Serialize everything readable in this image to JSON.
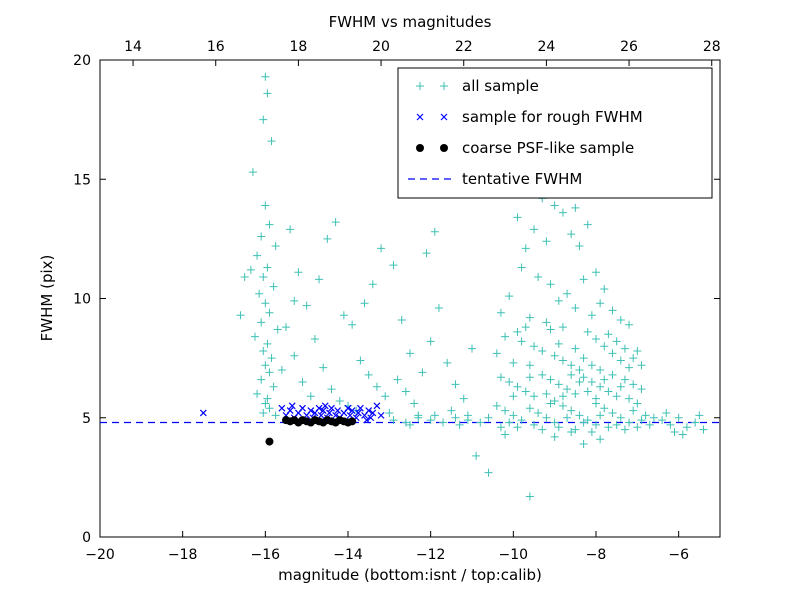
{
  "figure": {
    "title": "FWHM vs magnitudes",
    "xlabel": "magnitude (bottom:isnt / top:calib)",
    "ylabel": "FWHM (pix)"
  },
  "chart_data": {
    "type": "scatter",
    "title": "FWHM vs magnitudes",
    "xlabel": "magnitude (bottom:isnt / top:calib)",
    "ylabel": "FWHM (pix)",
    "grid": false,
    "legend_position": "upper right",
    "x_bottom": {
      "label": "isnt",
      "range": [
        -20,
        -5
      ],
      "ticks": [
        -20,
        -18,
        -16,
        -14,
        -12,
        -10,
        -8,
        -6
      ]
    },
    "x_top": {
      "label": "calib",
      "ticks": [
        14,
        16,
        18,
        20,
        22,
        24,
        26,
        28
      ],
      "offset_from_bottom": 33.2
    },
    "ylim": [
      0,
      20
    ],
    "yticks": [
      0,
      5,
      10,
      15,
      20
    ],
    "tentative_fwhm": 4.8,
    "series": [
      {
        "name": "all sample",
        "marker": "plus",
        "color": "#3fc1b4",
        "points": [
          [
            -16,
            19.3
          ],
          [
            -15.95,
            18.6
          ],
          [
            -16.05,
            17.5
          ],
          [
            -15.85,
            16.6
          ],
          [
            -16.3,
            15.3
          ],
          [
            -16,
            13.9
          ],
          [
            -15.9,
            13.1
          ],
          [
            -16.1,
            12.6
          ],
          [
            -15.75,
            12.2
          ],
          [
            -16.2,
            11.8
          ],
          [
            -15.95,
            11.3
          ],
          [
            -16.05,
            10.9
          ],
          [
            -15.8,
            10.5
          ],
          [
            -16.15,
            10.2
          ],
          [
            -16,
            9.8
          ],
          [
            -15.9,
            9.4
          ],
          [
            -16.1,
            9
          ],
          [
            -15.7,
            8.7
          ],
          [
            -16.25,
            8.4
          ],
          [
            -15.95,
            8.1
          ],
          [
            -16.05,
            7.8
          ],
          [
            -15.85,
            7.5
          ],
          [
            -16,
            7.2
          ],
          [
            -15.9,
            6.9
          ],
          [
            -16.1,
            6.6
          ],
          [
            -15.8,
            6.3
          ],
          [
            -16.2,
            6
          ],
          [
            -15.95,
            5.8
          ],
          [
            -16,
            5.6
          ],
          [
            -15.9,
            5.4
          ],
          [
            -16.05,
            5.2
          ],
          [
            -15.75,
            5.1
          ],
          [
            -16.35,
            11.2
          ],
          [
            -16.5,
            10.9
          ],
          [
            -16.6,
            9.3
          ],
          [
            -15.6,
            7
          ],
          [
            -15.4,
            12.9
          ],
          [
            -15.2,
            11.1
          ],
          [
            -15,
            9.7
          ],
          [
            -14.8,
            8.3
          ],
          [
            -15.3,
            7.6
          ],
          [
            -14.6,
            7.1
          ],
          [
            -15.1,
            6.5
          ],
          [
            -14.4,
            6.2
          ],
          [
            -14.9,
            5.9
          ],
          [
            -14.2,
            5.7
          ],
          [
            -13.9,
            8.9
          ],
          [
            -13.7,
            7.4
          ],
          [
            -13.5,
            6.8
          ],
          [
            -13.3,
            6.3
          ],
          [
            -13.1,
            5.9
          ],
          [
            -13.6,
            9.8
          ],
          [
            -13.4,
            10.6
          ],
          [
            -13.2,
            12.1
          ],
          [
            -12.9,
            11.4
          ],
          [
            -12.7,
            9.1
          ],
          [
            -12.5,
            7.7
          ],
          [
            -12.8,
            6.6
          ],
          [
            -12.6,
            6.1
          ],
          [
            -14,
            5.5
          ],
          [
            -13.8,
            5.3
          ],
          [
            -15.5,
            8.8
          ],
          [
            -15.3,
            9.9
          ],
          [
            -14.7,
            10.8
          ],
          [
            -14.5,
            12.5
          ],
          [
            -14.3,
            13.2
          ],
          [
            -12.4,
            5.6
          ],
          [
            -12.2,
            6.9
          ],
          [
            -12,
            8.2
          ],
          [
            -11.8,
            9.6
          ],
          [
            -11.6,
            7.3
          ],
          [
            -11.4,
            6.4
          ],
          [
            -11.2,
            5.8
          ],
          [
            -11,
            7.9
          ],
          [
            -12.1,
            11.9
          ],
          [
            -11.9,
            12.8
          ],
          [
            -13,
            5.2
          ],
          [
            -12.3,
            5.1
          ],
          [
            -11.5,
            5.3
          ],
          [
            -11.1,
            5.1
          ],
          [
            -14.1,
            9.3
          ],
          [
            -9.3,
            14.2
          ],
          [
            -9,
            13.9
          ],
          [
            -9.9,
            13.4
          ],
          [
            -8.8,
            13.6
          ],
          [
            -9.5,
            12.9
          ],
          [
            -8.6,
            12.7
          ],
          [
            -9.2,
            12.4
          ],
          [
            -8.4,
            12.2
          ],
          [
            -9.7,
            12.1
          ],
          [
            -8.2,
            13.1
          ],
          [
            -8.9,
            14.4
          ],
          [
            -8.5,
            13.8
          ],
          [
            -9.8,
            11.3
          ],
          [
            -9.4,
            10.9
          ],
          [
            -9.1,
            10.6
          ],
          [
            -8.7,
            10.2
          ],
          [
            -8.3,
            10.8
          ],
          [
            -8,
            11.1
          ],
          [
            -7.8,
            10.4
          ],
          [
            -8.9,
            9.9
          ],
          [
            -8.5,
            9.6
          ],
          [
            -8.1,
            9.3
          ],
          [
            -7.9,
            9.8
          ],
          [
            -7.6,
            9.5
          ],
          [
            -9.6,
            9.2
          ],
          [
            -9.2,
            9
          ],
          [
            -8.8,
            8.8
          ],
          [
            -7.4,
            9.1
          ],
          [
            -7.2,
            8.9
          ],
          [
            -10.1,
            10.1
          ],
          [
            -10.3,
            9.4
          ],
          [
            -9.9,
            8.6
          ],
          [
            -10.2,
            8.4
          ],
          [
            -9.8,
            8.2
          ],
          [
            -9.5,
            8
          ],
          [
            -9.3,
            7.8
          ],
          [
            -9,
            7.6
          ],
          [
            -8.8,
            7.4
          ],
          [
            -8.6,
            7.2
          ],
          [
            -8.4,
            7
          ],
          [
            -8.2,
            8.6
          ],
          [
            -8,
            8.3
          ],
          [
            -7.8,
            8
          ],
          [
            -7.6,
            7.7
          ],
          [
            -7.4,
            7.4
          ],
          [
            -7.2,
            7.1
          ],
          [
            -7,
            7.8
          ],
          [
            -9.6,
            7.2
          ],
          [
            -9.1,
            8.7
          ],
          [
            -8.9,
            8.1
          ],
          [
            -8.5,
            7.9
          ],
          [
            -8.3,
            7.5
          ],
          [
            -8.1,
            7.2
          ],
          [
            -7.9,
            7
          ],
          [
            -7.7,
            8.5
          ],
          [
            -7.5,
            8.2
          ],
          [
            -7.3,
            7.9
          ],
          [
            -7.1,
            7.5
          ],
          [
            -6.9,
            7.2
          ],
          [
            -10,
            7.3
          ],
          [
            -10.4,
            7.7
          ],
          [
            -9.7,
            8.8
          ],
          [
            -10.3,
            6.7
          ],
          [
            -10.1,
            6.5
          ],
          [
            -9.9,
            6.3
          ],
          [
            -9.7,
            6.1
          ],
          [
            -9.5,
            5.9
          ],
          [
            -9.3,
            6.8
          ],
          [
            -9.1,
            6.6
          ],
          [
            -8.9,
            6.4
          ],
          [
            -8.7,
            6.2
          ],
          [
            -8.5,
            6
          ],
          [
            -8.3,
            6.7
          ],
          [
            -8.1,
            6.5
          ],
          [
            -7.9,
            6.3
          ],
          [
            -7.7,
            6.1
          ],
          [
            -7.5,
            5.9
          ],
          [
            -7.3,
            6.6
          ],
          [
            -7.1,
            6.4
          ],
          [
            -6.9,
            6.2
          ],
          [
            -8.6,
            6.8
          ],
          [
            -8.2,
            6.1
          ],
          [
            -7.8,
            6.6
          ],
          [
            -7.4,
            6.3
          ],
          [
            -8,
            5.8
          ],
          [
            -8.8,
            5.9
          ],
          [
            -9.2,
            6
          ],
          [
            -9.6,
            6.7
          ],
          [
            -10,
            5.9
          ],
          [
            -8.4,
            6.5
          ],
          [
            -7.6,
            6.8
          ],
          [
            -7.2,
            5.8
          ],
          [
            -10.4,
            5.5
          ],
          [
            -10.2,
            5.3
          ],
          [
            -10,
            5.1
          ],
          [
            -9.8,
            4.9
          ],
          [
            -9.6,
            5.4
          ],
          [
            -9.4,
            5.2
          ],
          [
            -9.2,
            5
          ],
          [
            -9,
            4.8
          ],
          [
            -8.8,
            5.5
          ],
          [
            -8.6,
            5.3
          ],
          [
            -8.4,
            5.1
          ],
          [
            -8.2,
            4.9
          ],
          [
            -8,
            4.7
          ],
          [
            -7.8,
            5.4
          ],
          [
            -7.6,
            5.2
          ],
          [
            -7.4,
            5
          ],
          [
            -7.2,
            4.8
          ],
          [
            -7,
            4.6
          ],
          [
            -6.8,
            5.1
          ],
          [
            -8.9,
            4.6
          ],
          [
            -8.5,
            4.5
          ],
          [
            -8.1,
            4.4
          ],
          [
            -7.7,
            4.6
          ],
          [
            -7.3,
            4.5
          ],
          [
            -8.7,
            5
          ],
          [
            -8.3,
            4.8
          ],
          [
            -7.9,
            5.1
          ],
          [
            -7.5,
            4.7
          ],
          [
            -9.1,
            5.6
          ],
          [
            -9.5,
            4.7
          ],
          [
            -9.9,
            4.6
          ],
          [
            -10.1,
            4.8
          ],
          [
            -9.3,
            4.5
          ],
          [
            -8.6,
            4.4
          ],
          [
            -7.1,
            5.3
          ],
          [
            -6.9,
            4.9
          ],
          [
            -6.7,
            4.7
          ],
          [
            -6.6,
            5
          ],
          [
            -7,
            5.6
          ],
          [
            -8,
            5.6
          ],
          [
            -9,
            5.7
          ],
          [
            -10.3,
            4.6
          ],
          [
            -6.4,
            4.9
          ],
          [
            -6.2,
            4.7
          ],
          [
            -6,
            5
          ],
          [
            -5.8,
            4.6
          ],
          [
            -5.6,
            4.8
          ],
          [
            -5.4,
            4.5
          ],
          [
            -6.3,
            5.2
          ],
          [
            -5.9,
            4.3
          ],
          [
            -5.5,
            5.1
          ],
          [
            -6.1,
            4.4
          ],
          [
            -12.9,
            4.9
          ],
          [
            -12.6,
            4.8
          ],
          [
            -12.3,
            5
          ],
          [
            -12,
            4.9
          ],
          [
            -11.7,
            4.8
          ],
          [
            -11.4,
            5
          ],
          [
            -11.1,
            4.9
          ],
          [
            -10.8,
            4.8
          ],
          [
            -10.6,
            5
          ],
          [
            -12.5,
            4.7
          ],
          [
            -11.9,
            5.1
          ],
          [
            -11.3,
            4.7
          ],
          [
            -10.6,
            2.7
          ],
          [
            -9.6,
            1.7
          ],
          [
            -10.9,
            3.4
          ],
          [
            -8.3,
            3.9
          ],
          [
            -7.9,
            4.1
          ],
          [
            -9,
            4.2
          ],
          [
            -10.2,
            4.3
          ]
        ]
      },
      {
        "name": "sample for rough FWHM",
        "marker": "x",
        "color": "#0000ff",
        "points": [
          [
            -17.5,
            5.2
          ],
          [
            -15.6,
            5.4
          ],
          [
            -15.5,
            5.1
          ],
          [
            -15.4,
            5.3
          ],
          [
            -15.3,
            5
          ],
          [
            -15.2,
            5.2
          ],
          [
            -15.1,
            5.4
          ],
          [
            -15,
            5.1
          ],
          [
            -14.9,
            5.3
          ],
          [
            -14.85,
            5
          ],
          [
            -14.8,
            5.2
          ],
          [
            -14.7,
            5.4
          ],
          [
            -14.65,
            5.1
          ],
          [
            -14.6,
            5.3
          ],
          [
            -14.5,
            5
          ],
          [
            -14.45,
            5.2
          ],
          [
            -14.4,
            5.4
          ],
          [
            -14.3,
            5.1
          ],
          [
            -14.25,
            5.3
          ],
          [
            -14.2,
            5
          ],
          [
            -14.1,
            5.2
          ],
          [
            -14,
            5.4
          ],
          [
            -13.95,
            5.1
          ],
          [
            -13.9,
            5.3
          ],
          [
            -13.8,
            5
          ],
          [
            -13.75,
            5.2
          ],
          [
            -13.7,
            5.4
          ],
          [
            -13.6,
            5.1
          ],
          [
            -13.5,
            5.3
          ],
          [
            -13.45,
            5
          ],
          [
            -13.4,
            5.2
          ],
          [
            -13.3,
            5.5
          ],
          [
            -13.2,
            5.1
          ],
          [
            -14.55,
            5.5
          ],
          [
            -15.35,
            5.5
          ],
          [
            -13.55,
            4.9
          ]
        ]
      },
      {
        "name": "coarse PSF-like sample",
        "marker": "circle",
        "color": "#000000",
        "points": [
          [
            -15.9,
            4
          ],
          [
            -15.5,
            4.9
          ],
          [
            -15.4,
            4.85
          ],
          [
            -15.3,
            4.9
          ],
          [
            -15.2,
            4.8
          ],
          [
            -15.1,
            4.9
          ],
          [
            -15,
            4.85
          ],
          [
            -14.9,
            4.8
          ],
          [
            -14.8,
            4.9
          ],
          [
            -14.7,
            4.85
          ],
          [
            -14.6,
            4.8
          ],
          [
            -14.5,
            4.9
          ],
          [
            -14.4,
            4.85
          ],
          [
            -14.3,
            4.8
          ],
          [
            -14.2,
            4.9
          ],
          [
            -14.1,
            4.85
          ],
          [
            -14,
            4.8
          ],
          [
            -13.9,
            4.85
          ]
        ]
      },
      {
        "name": "tentative FWHM",
        "marker": "dashed-line",
        "color": "#0000ff",
        "y": 4.8
      }
    ]
  }
}
